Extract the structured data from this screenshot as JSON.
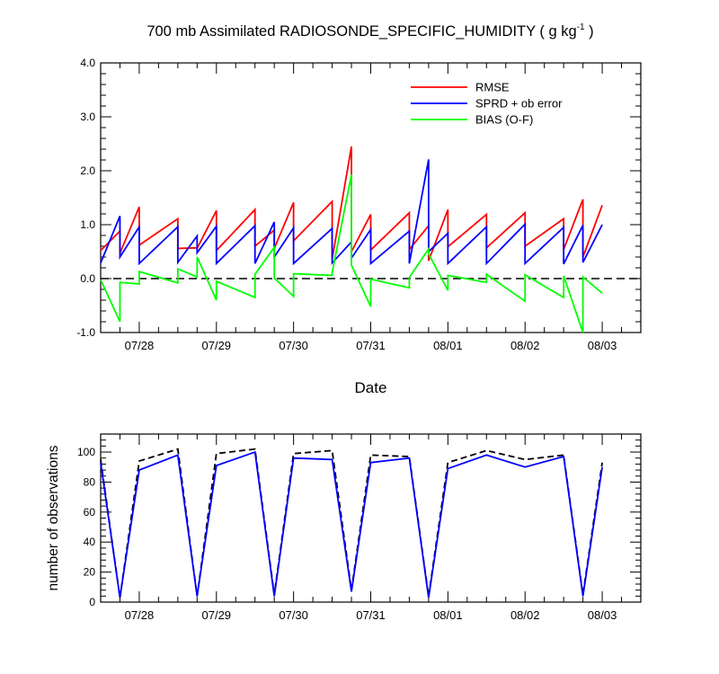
{
  "title": {
    "main": "700 mb Assimilated RADIOSONDE_SPECIFIC_HUMIDITY ( g kg",
    "superscript": "-1",
    "suffix": " )"
  },
  "chart_data": [
    {
      "type": "line",
      "xlabel": "Date",
      "ylabel": "",
      "ylim": [
        -1.0,
        4.0
      ],
      "yticks": [
        -1.0,
        0.0,
        1.0,
        2.0,
        3.0,
        4.0
      ],
      "ytick_labels": [
        "-1.0",
        "0.0",
        "1.0",
        "2.0",
        "3.0",
        "4.0"
      ],
      "xlim": [
        0,
        28
      ],
      "xticks": [
        2,
        6,
        10,
        14,
        18,
        22,
        26
      ],
      "xtick_labels": [
        "07/28",
        "07/29",
        "07/30",
        "07/31",
        "08/01",
        "08/02",
        "08/03"
      ],
      "legend_placement": "top-right",
      "reference_line": 0.0,
      "series": [
        {
          "name": "RMSE",
          "color": "#ff0000",
          "points": [
            [
              0,
              0.52
            ],
            [
              1,
              0.88
            ],
            [
              1,
              0.47
            ],
            [
              2,
              1.33
            ],
            [
              2,
              0.62
            ],
            [
              4,
              1.11
            ],
            [
              4,
              0.56
            ],
            [
              5,
              0.57
            ],
            [
              5,
              0.56
            ],
            [
              6,
              1.26
            ],
            [
              6,
              0.52
            ],
            [
              8,
              1.28
            ],
            [
              8,
              0.6
            ],
            [
              9,
              0.9
            ],
            [
              9,
              0.56
            ],
            [
              10,
              1.41
            ],
            [
              10,
              0.7
            ],
            [
              12,
              1.43
            ],
            [
              12,
              0.36
            ],
            [
              13,
              2.45
            ],
            [
              13,
              0.5
            ],
            [
              14,
              1.19
            ],
            [
              14,
              0.53
            ],
            [
              16,
              1.22
            ],
            [
              16,
              0.54
            ],
            [
              17,
              0.98
            ],
            [
              17,
              0.33
            ],
            [
              18,
              1.28
            ],
            [
              18,
              0.59
            ],
            [
              20,
              1.19
            ],
            [
              20,
              0.57
            ],
            [
              22,
              1.22
            ],
            [
              22,
              0.6
            ],
            [
              24,
              1.11
            ],
            [
              24,
              0.54
            ],
            [
              25,
              1.47
            ],
            [
              25,
              0.4
            ],
            [
              26,
              1.36
            ]
          ]
        },
        {
          "name": "SPRD + ob error",
          "color": "#0000ff",
          "points": [
            [
              0,
              0.29
            ],
            [
              1,
              1.16
            ],
            [
              1,
              0.4
            ],
            [
              2,
              0.96
            ],
            [
              2,
              0.28
            ],
            [
              4,
              0.96
            ],
            [
              4,
              0.3
            ],
            [
              5,
              0.79
            ],
            [
              5,
              0.48
            ],
            [
              6,
              0.97
            ],
            [
              6,
              0.28
            ],
            [
              8,
              0.98
            ],
            [
              8,
              0.28
            ],
            [
              9,
              1.05
            ],
            [
              9,
              0.4
            ],
            [
              10,
              0.94
            ],
            [
              10,
              0.28
            ],
            [
              12,
              0.93
            ],
            [
              12,
              0.29
            ],
            [
              13,
              0.68
            ],
            [
              13,
              0.38
            ],
            [
              14,
              0.91
            ],
            [
              14,
              0.28
            ],
            [
              16,
              0.88
            ],
            [
              16,
              0.28
            ],
            [
              17,
              2.21
            ],
            [
              17,
              0.5
            ],
            [
              18,
              0.84
            ],
            [
              18,
              0.28
            ],
            [
              20,
              0.96
            ],
            [
              20,
              0.28
            ],
            [
              22,
              1.01
            ],
            [
              22,
              0.28
            ],
            [
              24,
              0.95
            ],
            [
              24,
              0.27
            ],
            [
              25,
              0.99
            ],
            [
              25,
              0.3
            ],
            [
              26,
              1.0
            ]
          ]
        },
        {
          "name": "BIAS (O-F)",
          "color": "#00ff00",
          "points": [
            [
              0,
              -0.02
            ],
            [
              1,
              -0.8
            ],
            [
              1,
              -0.07
            ],
            [
              2,
              -0.1
            ],
            [
              2,
              0.13
            ],
            [
              4,
              -0.08
            ],
            [
              4,
              0.18
            ],
            [
              5,
              0.03
            ],
            [
              5,
              0.4
            ],
            [
              6,
              -0.4
            ],
            [
              6,
              -0.05
            ],
            [
              8,
              -0.35
            ],
            [
              8,
              0.08
            ],
            [
              9,
              0.58
            ],
            [
              9,
              0.01
            ],
            [
              10,
              -0.33
            ],
            [
              10,
              0.09
            ],
            [
              12,
              0.06
            ],
            [
              12,
              0.11
            ],
            [
              13,
              1.93
            ],
            [
              13,
              0.25
            ],
            [
              14,
              -0.52
            ],
            [
              14,
              -0.01
            ],
            [
              16,
              -0.17
            ],
            [
              16,
              0.02
            ],
            [
              17,
              0.55
            ],
            [
              17,
              0.46
            ],
            [
              18,
              -0.22
            ],
            [
              18,
              0.06
            ],
            [
              20,
              -0.07
            ],
            [
              20,
              0.08
            ],
            [
              22,
              -0.42
            ],
            [
              22,
              0.07
            ],
            [
              24,
              -0.35
            ],
            [
              24,
              0.05
            ],
            [
              25,
              -1.0
            ],
            [
              25,
              0.03
            ],
            [
              26,
              -0.27
            ]
          ]
        }
      ]
    },
    {
      "type": "line",
      "xlabel": "",
      "ylabel": "number of observations",
      "ylim": [
        0,
        112
      ],
      "yticks": [
        0,
        20,
        40,
        60,
        80,
        100
      ],
      "ytick_labels": [
        "0",
        "20",
        "40",
        "60",
        "80",
        "100"
      ],
      "xlim": [
        0,
        28
      ],
      "xticks": [
        2,
        6,
        10,
        14,
        18,
        22,
        26
      ],
      "xtick_labels": [
        "07/28",
        "07/29",
        "07/30",
        "07/31",
        "08/01",
        "08/02",
        "08/03"
      ],
      "series": [
        {
          "color": "#000000",
          "dash": true,
          "x": [
            0,
            1,
            2,
            4,
            5,
            6,
            8,
            9,
            10,
            12,
            13,
            14,
            16,
            17,
            18,
            20,
            22,
            24,
            25,
            26
          ],
          "values": [
            95,
            3,
            94,
            102,
            4,
            99,
            102,
            5,
            99,
            101,
            8,
            98,
            97,
            4,
            93,
            101,
            95,
            98,
            5,
            93
          ]
        },
        {
          "color": "#0000ff",
          "dash": false,
          "x": [
            0,
            1,
            2,
            4,
            5,
            6,
            8,
            9,
            10,
            12,
            13,
            14,
            16,
            17,
            18,
            20,
            22,
            24,
            25,
            26
          ],
          "values": [
            93,
            3,
            88,
            98,
            4,
            91,
            100,
            4,
            96,
            95,
            7,
            93,
            96,
            3,
            89,
            98,
            90,
            97,
            4,
            90
          ]
        }
      ]
    }
  ]
}
